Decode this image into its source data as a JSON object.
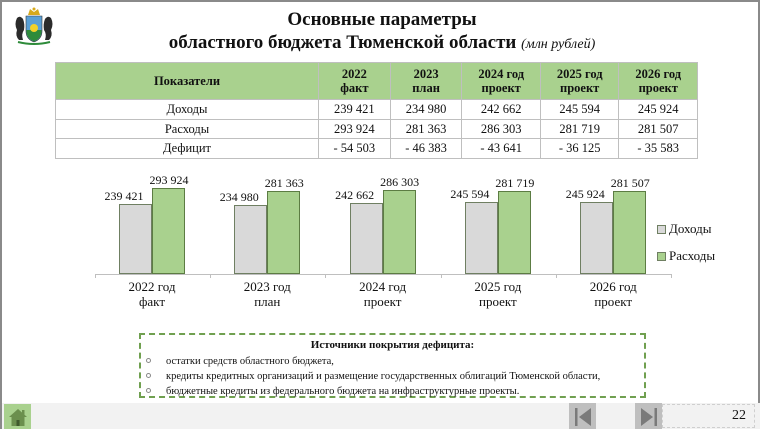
{
  "header": {
    "emblem": "tyumen-oblast-coat-of-arms",
    "title_line1": "Основные параметры",
    "title_line2": "областного бюджета Тюменской области",
    "title_unit": "(млн рублей)"
  },
  "table": {
    "columns": [
      {
        "l1": "Показатели",
        "l2": ""
      },
      {
        "l1": "2022",
        "l2": "факт"
      },
      {
        "l1": "2023",
        "l2": "план"
      },
      {
        "l1": "2024 год",
        "l2": "проект"
      },
      {
        "l1": "2025 год",
        "l2": "проект"
      },
      {
        "l1": "2026 год",
        "l2": "проект"
      }
    ],
    "rows": [
      {
        "label": "Доходы",
        "values": [
          "239 421",
          "234 980",
          "242 662",
          "245 594",
          "245 924"
        ]
      },
      {
        "label": "Расходы",
        "values": [
          "293 924",
          "281 363",
          "286 303",
          "281 719",
          "281 507"
        ]
      },
      {
        "label": "Дефицит",
        "values": [
          "- 54 503",
          "- 46 383",
          "- 43 641",
          "- 36 125",
          "- 35 583"
        ]
      }
    ],
    "header_color": "#a9d18e"
  },
  "chart_data": {
    "type": "bar",
    "title": "",
    "xlabel": "",
    "ylabel": "",
    "categories": [
      "2022 год факт",
      "2023 год план",
      "2024 год проект",
      "2025 год проект",
      "2026 год проект"
    ],
    "category_lines": [
      [
        "2022 год",
        "факт"
      ],
      [
        "2023 год",
        "план"
      ],
      [
        "2024 год",
        "проект"
      ],
      [
        "2025 год",
        "проект"
      ],
      [
        "2026 год",
        "проект"
      ]
    ],
    "series": [
      {
        "name": "Доходы",
        "color": "#d9d9d9",
        "values": [
          239421,
          234980,
          242662,
          245594,
          245924
        ],
        "labels": [
          "239 421",
          "234 980",
          "242 662",
          "245 594",
          "245 924"
        ]
      },
      {
        "name": "Расходы",
        "color": "#a9d18e",
        "values": [
          293924,
          281363,
          286303,
          281719,
          281507
        ],
        "labels": [
          "293 924",
          "281 363",
          "286 303",
          "281 719",
          "281 507"
        ]
      }
    ],
    "ylim": [
      0,
      340000
    ],
    "grid": false,
    "legend_position": "right"
  },
  "sources": {
    "title": "Источники покрытия дефицита:",
    "items": [
      "остатки средств областного бюджета,",
      "кредиты кредитных организаций и размещение государственных облигаций Тюменской области,",
      "бюджетные кредиты из федерального бюджета на инфраструктурные проекты."
    ],
    "border_color": "#70a050"
  },
  "footer": {
    "home_icon": "home-icon",
    "prev_icon": "previous-slide-icon",
    "next_icon": "next-slide-icon",
    "page_number": "22"
  }
}
